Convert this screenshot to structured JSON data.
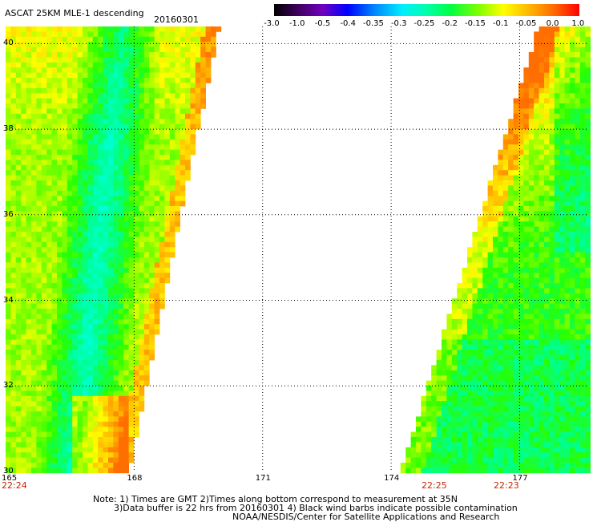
{
  "header": {
    "title": "ASCAT 25KM MLE-1 descending",
    "date": "20160301"
  },
  "colorbar": {
    "labels": [
      "-3.0",
      "-1.0",
      "-0.5",
      "-0.4",
      "-0.35",
      "-0.3",
      "-0.25",
      "-0.2",
      "-0.15",
      "-0.1",
      "-0.05",
      "0.0",
      "1.0"
    ]
  },
  "axes": {
    "lon_labels": [
      "165",
      "168",
      "171",
      "174",
      "177"
    ],
    "lat_labels": [
      "30",
      "32",
      "34",
      "36",
      "38",
      "40"
    ]
  },
  "times": [
    "22:24",
    "22:25",
    "22:23"
  ],
  "footer": {
    "line1": "Note: 1) Times are GMT 2)Times along bottom correspond to measurement at 35N",
    "line2": "3)Data buffer is 22 hrs from 20160301 4) Black wind barbs indicate possible contamination",
    "line3": "NOAA/NESDIS/Center for Satellite Applications and Research"
  },
  "colors": {
    "orange": "#ff8800",
    "yellow": "#ffff00",
    "green": "#00ff40",
    "cyan": "#00ffee",
    "time_label": "#cc2200"
  }
}
